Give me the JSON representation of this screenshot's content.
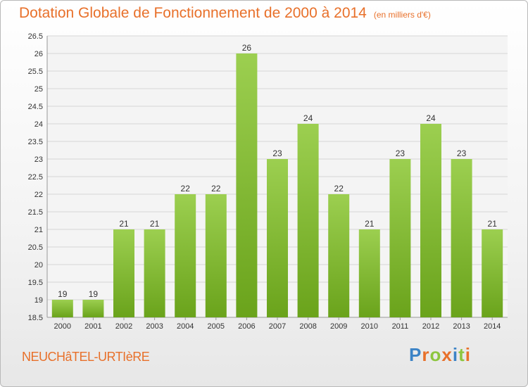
{
  "chart_data": {
    "type": "bar",
    "title": "Dotation Globale de Fonctionnement de 2000 à 2014",
    "subtitle": "(en milliers d'€)",
    "categories": [
      "2000",
      "2001",
      "2002",
      "2003",
      "2004",
      "2005",
      "2006",
      "2007",
      "2008",
      "2009",
      "2010",
      "2011",
      "2012",
      "2013",
      "2014"
    ],
    "values": [
      19,
      19,
      21,
      21,
      22,
      22,
      26,
      23,
      24,
      22,
      21,
      23,
      24,
      23,
      21
    ],
    "value_labels": [
      "19",
      "19",
      "21",
      "21",
      "22",
      "22",
      "26",
      "23",
      "24",
      "22",
      "21",
      "23",
      "24",
      "23",
      "21"
    ],
    "ylim": [
      18.5,
      26.5
    ],
    "yticks": [
      "18.5",
      "19",
      "19.5",
      "20",
      "20.5",
      "21",
      "21.5",
      "22",
      "22.5",
      "23",
      "23.5",
      "24",
      "24.5",
      "25",
      "25.5",
      "26",
      "26.5"
    ],
    "grid": true,
    "bar_color": "#8dc63f"
  },
  "footer": {
    "commune": "NEUCHâTEL-URTIèRE",
    "logo": {
      "letters": [
        "P",
        "r",
        "o",
        "x",
        "i",
        "t",
        "i"
      ],
      "colors": [
        "#3b83c6",
        "#e8702a",
        "#8dc63f",
        "#e8702a",
        "#3b83c6",
        "#8dc63f",
        "#e8702a"
      ]
    }
  }
}
